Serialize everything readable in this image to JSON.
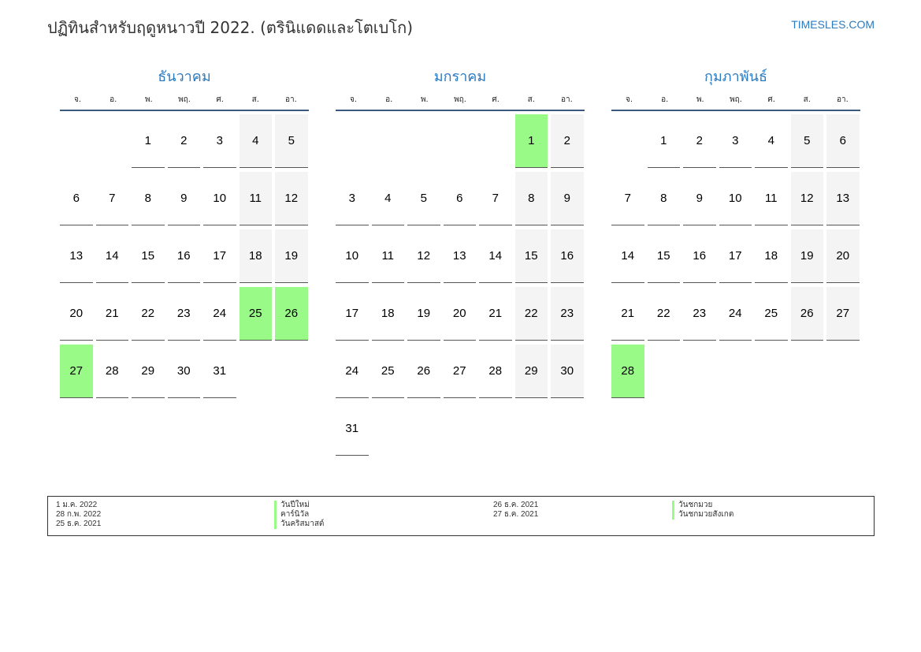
{
  "header": {
    "title": "ปฏิทินสำหรับฤดูหนาวปี 2022. (ตรินิแดดและโตเบโก)",
    "site": "TIMESLES.COM"
  },
  "weekdays": [
    "จ.",
    "อ.",
    "พ.",
    "พฤ.",
    "ศ.",
    "ส.",
    "อา."
  ],
  "colors": {
    "accent": "#2a7ac0",
    "holiday": "#99fa88",
    "weekend": "#f4f4f4"
  },
  "months": [
    {
      "name": "ธันวาคม",
      "first_weekday_index": 2,
      "days": 31,
      "holidays": [
        25,
        26,
        27
      ]
    },
    {
      "name": "มกราคม",
      "first_weekday_index": 5,
      "days": 31,
      "holidays": [
        1
      ]
    },
    {
      "name": "กุมภาพันธ์",
      "first_weekday_index": 1,
      "days": 28,
      "holidays": [
        28
      ]
    }
  ],
  "legend": [
    {
      "date": "1 ม.ค. 2022",
      "name": "วันปีใหม่"
    },
    {
      "date": "28 ก.พ. 2022",
      "name": "คาร์นิวัล"
    },
    {
      "date": "25 ธ.ค. 2021",
      "name": "วันคริสมาสต์"
    },
    {
      "date": "26 ธ.ค. 2021",
      "name": "วันชกมวย"
    },
    {
      "date": "27 ธ.ค. 2021",
      "name": "วันชกมวยสังเกต"
    }
  ]
}
